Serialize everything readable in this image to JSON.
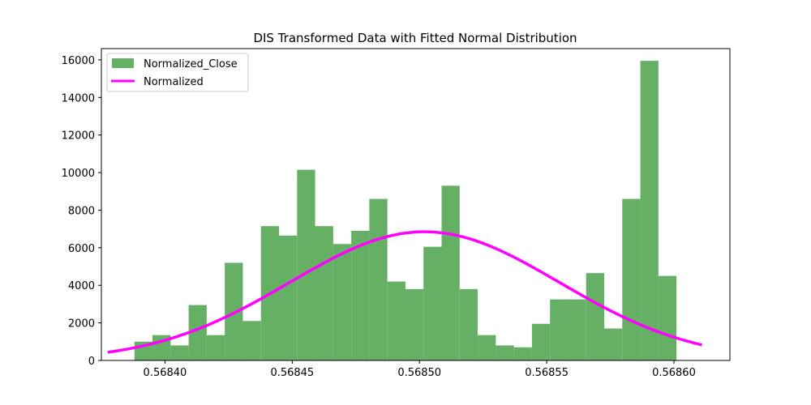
{
  "chart_data": {
    "type": "bar",
    "title": "DIS Transformed Data with Fitted Normal Distribution",
    "xlabel": "",
    "ylabel": "",
    "xlim": [
      0.568375,
      0.568622
    ],
    "ylim": [
      0,
      16600
    ],
    "x_ticks": [
      "0.56840",
      "0.56845",
      "0.56850",
      "0.56855",
      "0.56860"
    ],
    "x_tick_values": [
      0.5684,
      0.56845,
      0.5685,
      0.56855,
      0.5686
    ],
    "y_ticks": [
      "0",
      "2000",
      "4000",
      "6000",
      "8000",
      "10000",
      "12000",
      "14000",
      "16000"
    ],
    "y_tick_values": [
      0,
      2000,
      4000,
      6000,
      8000,
      10000,
      12000,
      14000,
      16000
    ],
    "grid": false,
    "legend_position": "top-left",
    "histogram": {
      "name": "Normalized_Close",
      "color": "#66b066",
      "bin_start": 0.568388,
      "bin_width": 7.1e-06,
      "values": [
        1000,
        1350,
        800,
        2950,
        1350,
        5200,
        2100,
        7150,
        6650,
        10150,
        7150,
        6200,
        6900,
        8600,
        4200,
        3800,
        6050,
        9300,
        3800,
        1350,
        800,
        700,
        1950,
        3250,
        3250,
        4650,
        1700,
        8600,
        15950,
        4500
      ]
    },
    "curve": {
      "name": "Normalized",
      "color": "#ff00ff",
      "mean": 0.568502,
      "std": 5.3e-05,
      "peak": 6850,
      "x_start": 0.5683775,
      "x_end": 0.568611
    }
  }
}
